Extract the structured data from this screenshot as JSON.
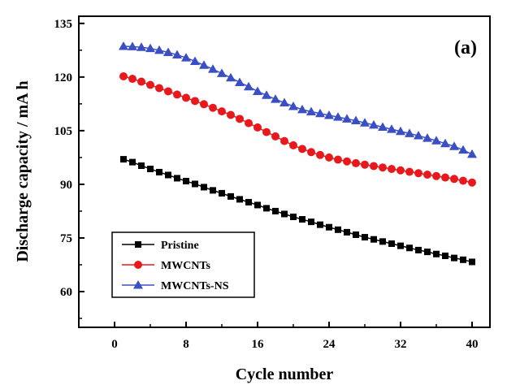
{
  "chart_data": {
    "type": "line",
    "panel_label": "(a)",
    "xlabel": "Cycle number",
    "ylabel": "Discharge capacity / mA h",
    "xlim": [
      -4,
      42
    ],
    "ylim": [
      50,
      137
    ],
    "xticks": [
      0,
      8,
      16,
      24,
      32,
      40
    ],
    "yticks": [
      60,
      75,
      90,
      105,
      120,
      135
    ],
    "grid": false,
    "legend_position": "bottom-left",
    "x": [
      1,
      2,
      3,
      4,
      5,
      6,
      7,
      8,
      9,
      10,
      11,
      12,
      13,
      14,
      15,
      16,
      17,
      18,
      19,
      20,
      21,
      22,
      23,
      24,
      25,
      26,
      27,
      28,
      29,
      30,
      31,
      32,
      33,
      34,
      35,
      36,
      37,
      38,
      39,
      40
    ],
    "series": [
      {
        "name": "Pristine",
        "color": "#000000",
        "marker": "square",
        "values": [
          97.0,
          96.2,
          95.2,
          94.3,
          93.4,
          92.6,
          91.7,
          90.9,
          90.1,
          89.2,
          88.3,
          87.5,
          86.6,
          85.8,
          85.0,
          84.2,
          83.3,
          82.5,
          81.7,
          80.9,
          80.2,
          79.5,
          78.7,
          78.0,
          77.3,
          76.6,
          75.9,
          75.2,
          74.6,
          74.0,
          73.4,
          72.8,
          72.2,
          71.6,
          71.1,
          70.5,
          70.0,
          69.4,
          68.9,
          68.3
        ]
      },
      {
        "name": "MWCNTs",
        "color": "#e8191c",
        "marker": "circle",
        "values": [
          120.2,
          119.5,
          118.7,
          117.8,
          116.9,
          116.0,
          115.1,
          114.2,
          113.3,
          112.4,
          111.4,
          110.4,
          109.4,
          108.3,
          107.1,
          105.9,
          104.6,
          103.4,
          102.1,
          100.9,
          99.9,
          99.0,
          98.2,
          97.5,
          96.9,
          96.4,
          95.9,
          95.5,
          95.1,
          94.7,
          94.3,
          93.9,
          93.5,
          93.1,
          92.7,
          92.3,
          91.9,
          91.5,
          91.0,
          90.5
        ]
      },
      {
        "name": "MWCNTs-NS",
        "color": "#3b4fc4",
        "marker": "triangle",
        "values": [
          128.6,
          128.5,
          128.3,
          128.0,
          127.5,
          126.9,
          126.2,
          125.4,
          124.4,
          123.3,
          122.2,
          121.0,
          119.8,
          118.5,
          117.3,
          116.0,
          114.9,
          113.8,
          112.8,
          111.8,
          110.9,
          110.3,
          109.8,
          109.3,
          108.8,
          108.3,
          107.8,
          107.2,
          106.6,
          106.0,
          105.4,
          104.8,
          104.2,
          103.6,
          102.9,
          102.2,
          101.4,
          100.6,
          99.6,
          98.4
        ]
      }
    ]
  }
}
